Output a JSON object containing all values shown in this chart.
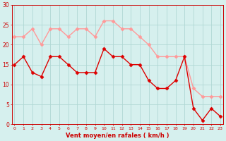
{
  "hours": [
    0,
    1,
    2,
    3,
    4,
    5,
    6,
    7,
    8,
    9,
    10,
    11,
    12,
    13,
    14,
    15,
    16,
    17,
    18,
    19,
    20,
    21,
    22,
    23
  ],
  "vent_moyen": [
    15,
    17,
    13,
    12,
    17,
    17,
    15,
    13,
    13,
    13,
    19,
    17,
    17,
    15,
    15,
    11,
    9,
    9,
    11,
    17,
    4,
    1,
    4,
    2
  ],
  "rafales": [
    22,
    22,
    24,
    20,
    24,
    24,
    22,
    24,
    24,
    22,
    26,
    26,
    24,
    24,
    22,
    20,
    17,
    17,
    17,
    17,
    9,
    7,
    7,
    7
  ],
  "color_moyen": "#dd0000",
  "color_rafales": "#ff9999",
  "bg_color": "#d6f0ee",
  "grid_color": "#b0d8d4",
  "xlabel": "Vent moyen/en rafales ( km/h )",
  "ylim": [
    0,
    30
  ],
  "yticks": [
    0,
    5,
    10,
    15,
    20,
    25,
    30
  ],
  "axis_color": "#cc0000",
  "marker": "D",
  "markersize": 2.5,
  "linewidth": 1.0
}
